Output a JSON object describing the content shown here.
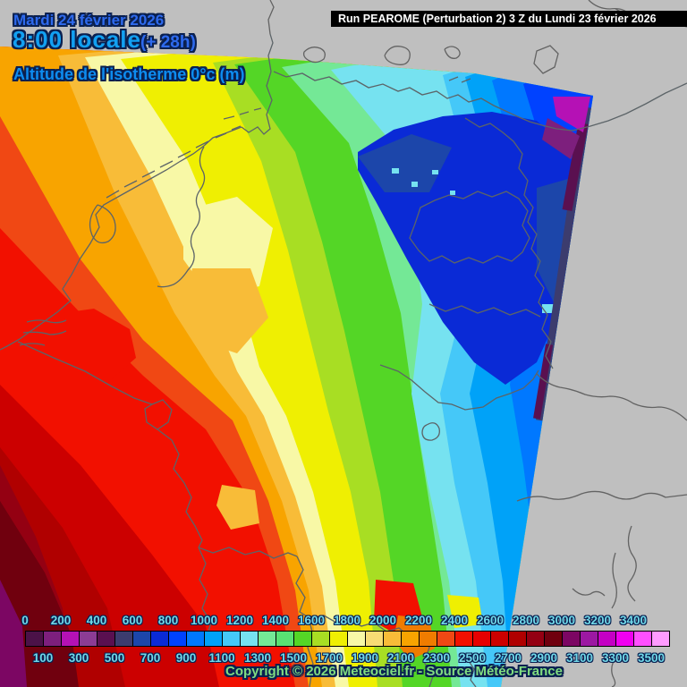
{
  "header": {
    "date": "Mardi 24 février 2026",
    "time": "8:00 locale",
    "forecast_offset": "(+ 28h)",
    "parameter": "Altitude de l'isotherme 0°c (m)",
    "run_info": "Run PEAROME (Perturbation 2) 3 Z du Lundi 23 février 2026"
  },
  "footer": {
    "copyright": "Copyright © 2026 Meteociel.fr - Source Météo-France"
  },
  "legend": {
    "title_unit": "m",
    "top_labels": [
      0,
      200,
      400,
      600,
      800,
      1000,
      1200,
      1400,
      1600,
      1800,
      2000,
      2200,
      2400,
      2600,
      2800,
      3000,
      3200,
      3400
    ],
    "bottom_labels": [
      100,
      300,
      500,
      700,
      900,
      1100,
      1300,
      1500,
      1700,
      1900,
      2100,
      2300,
      2500,
      2700,
      2900,
      3100,
      3300,
      3500
    ],
    "colors": [
      "#4B1248",
      "#7D1F7D",
      "#B511B5",
      "#8C3C94",
      "#5A1050",
      "#3C3C6E",
      "#1C46AA",
      "#0A2AD6",
      "#0042FF",
      "#0078FF",
      "#00A2F8",
      "#45C8F8",
      "#76E2F0",
      "#74E896",
      "#59E173",
      "#54D626",
      "#A8DE23",
      "#EFEF02",
      "#F8F8A6",
      "#F8DC74",
      "#F8BC38",
      "#F8A400",
      "#F07C00",
      "#F04814",
      "#F21000",
      "#E60000",
      "#CC0000",
      "#B00000",
      "#940012",
      "#70000E",
      "#7C0663",
      "#9C18A2",
      "#C400C4",
      "#F000F0",
      "#FF4FFF",
      "#FF9BFF"
    ]
  },
  "colors": {
    "background_gray": "#BFBFBF",
    "title_blue": "#2E6AEE",
    "time_cyan": "#12A0F2",
    "parameter_blue": "#0D8CF0",
    "outline_navy": "#0A2050",
    "legend_label_cyan": "#70D8E8",
    "copyright_green": "#80DC80",
    "run_bar_bg": "#000000",
    "run_bar_text": "#FFFFFF",
    "border_line_gray": "#5C6468"
  }
}
